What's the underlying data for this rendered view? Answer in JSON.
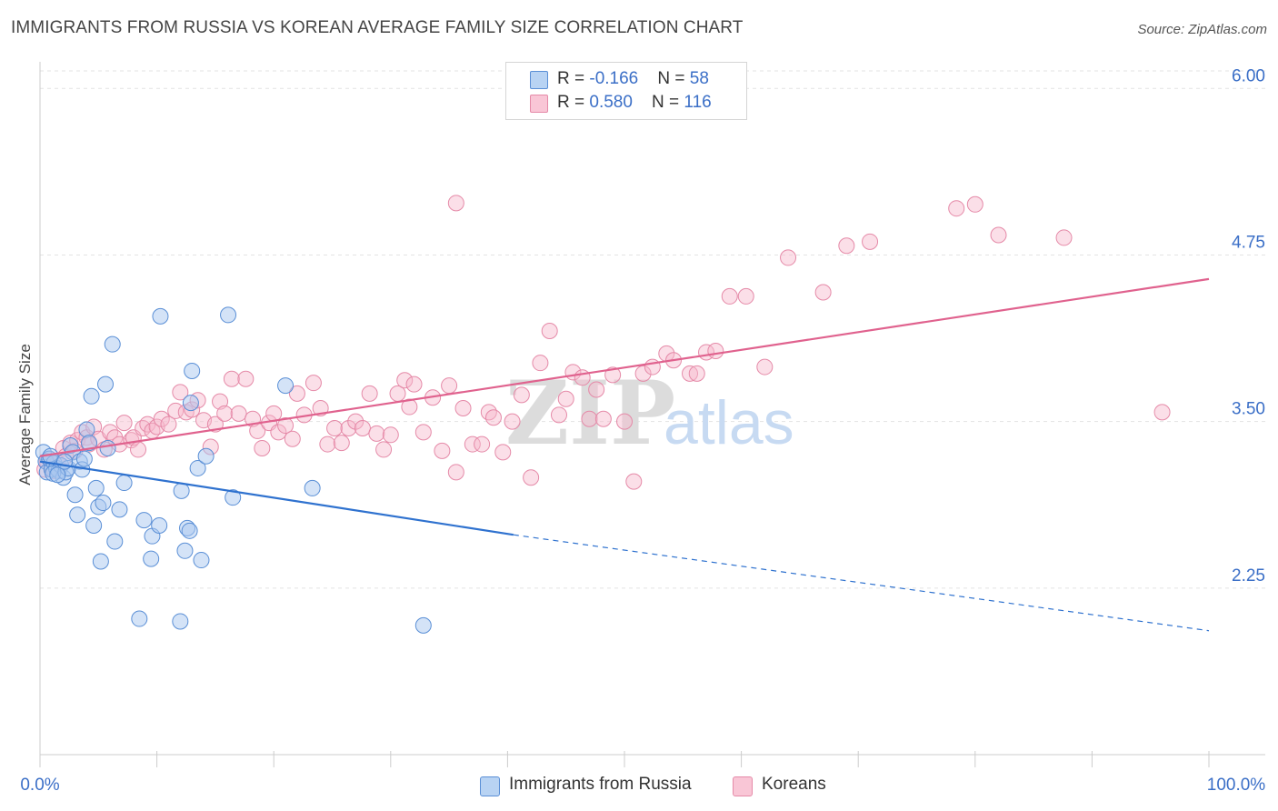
{
  "title": "IMMIGRANTS FROM RUSSIA VS KOREAN AVERAGE FAMILY SIZE CORRELATION CHART",
  "source": "Source: ZipAtlas.com",
  "watermark": {
    "zip": "ZIP",
    "atlas": "atlas"
  },
  "legend": {
    "rows": [
      {
        "r_label": "R = ",
        "r_value": "-0.166",
        "n_label": "N = ",
        "n_value": "58"
      },
      {
        "r_label": "R = ",
        "r_value": "0.580",
        "n_label": "N = ",
        "n_value": "116"
      }
    ]
  },
  "colors": {
    "russia_fill": "#a9c8f0",
    "russia_stroke": "#5a8fd6",
    "russia_line": "#2f72cf",
    "korean_fill": "#f7b8cc",
    "korean_stroke": "#e58aa8",
    "korean_line": "#e0628e",
    "axis_text": "#3b6fc7",
    "grid": "#e3e3e3"
  },
  "chart_data": {
    "type": "scatter",
    "xlabel": "",
    "ylabel": "Average Family Size",
    "x_tick_labels": [
      "0.0%",
      "100.0%"
    ],
    "y_ticks": [
      2.25,
      3.5,
      4.75,
      6.0
    ],
    "y_tick_labels": [
      "2.25",
      "3.50",
      "4.75",
      "6.00"
    ],
    "xlim": [
      0,
      100
    ],
    "ylim": [
      1.0,
      6.2
    ],
    "grid": true,
    "legend_position": "top-center",
    "series": [
      {
        "name": "Immigrants from Russia",
        "r": -0.166,
        "n": 58,
        "trend": {
          "x0": 0,
          "y0": 3.2,
          "x1": 40.5,
          "y1": 2.65,
          "dash_x1": 100,
          "dash_y1": 1.93
        },
        "points": [
          [
            0.3,
            3.27
          ],
          [
            0.5,
            3.2
          ],
          [
            0.6,
            3.12
          ],
          [
            0.8,
            3.22
          ],
          [
            1.0,
            3.14
          ],
          [
            1.2,
            3.19
          ],
          [
            1.4,
            3.15
          ],
          [
            1.6,
            3.13
          ],
          [
            1.8,
            3.17
          ],
          [
            2.0,
            3.08
          ],
          [
            1.1,
            3.11
          ],
          [
            0.9,
            3.24
          ],
          [
            2.2,
            3.12
          ],
          [
            2.4,
            3.15
          ],
          [
            2.6,
            3.32
          ],
          [
            2.8,
            3.27
          ],
          [
            3.0,
            2.95
          ],
          [
            3.2,
            2.8
          ],
          [
            3.4,
            3.2
          ],
          [
            3.6,
            3.14
          ],
          [
            3.8,
            3.22
          ],
          [
            4.0,
            3.44
          ],
          [
            4.2,
            3.34
          ],
          [
            4.4,
            3.69
          ],
          [
            4.6,
            2.72
          ],
          [
            4.8,
            3.0
          ],
          [
            5.0,
            2.86
          ],
          [
            5.2,
            2.45
          ],
          [
            5.4,
            2.89
          ],
          [
            5.6,
            3.78
          ],
          [
            5.8,
            3.3
          ],
          [
            6.2,
            4.08
          ],
          [
            6.4,
            2.6
          ],
          [
            6.8,
            2.84
          ],
          [
            7.2,
            3.04
          ],
          [
            8.5,
            2.02
          ],
          [
            8.9,
            2.76
          ],
          [
            9.5,
            2.47
          ],
          [
            9.6,
            2.64
          ],
          [
            10.2,
            2.72
          ],
          [
            10.3,
            4.29
          ],
          [
            12.0,
            2.0
          ],
          [
            12.1,
            2.98
          ],
          [
            12.4,
            2.53
          ],
          [
            12.6,
            2.7
          ],
          [
            12.8,
            2.68
          ],
          [
            12.9,
            3.64
          ],
          [
            13.0,
            3.88
          ],
          [
            13.8,
            2.46
          ],
          [
            13.5,
            3.15
          ],
          [
            14.2,
            3.24
          ],
          [
            16.1,
            4.3
          ],
          [
            16.5,
            2.93
          ],
          [
            21.0,
            3.77
          ],
          [
            23.3,
            3.0
          ],
          [
            32.8,
            1.97
          ],
          [
            1.5,
            3.1
          ],
          [
            2.1,
            3.2
          ]
        ]
      },
      {
        "name": "Koreans",
        "r": 0.58,
        "n": 116,
        "trend": {
          "x0": 0,
          "y0": 3.24,
          "x1": 100,
          "y1": 4.57
        },
        "points": [
          [
            0.4,
            3.14
          ],
          [
            0.6,
            3.2
          ],
          [
            0.8,
            3.22
          ],
          [
            1.0,
            3.16
          ],
          [
            1.2,
            3.13
          ],
          [
            1.5,
            3.19
          ],
          [
            2.0,
            3.3
          ],
          [
            2.2,
            3.24
          ],
          [
            2.6,
            3.34
          ],
          [
            3.0,
            3.28
          ],
          [
            3.2,
            3.36
          ],
          [
            3.6,
            3.42
          ],
          [
            4.0,
            3.38
          ],
          [
            4.2,
            3.33
          ],
          [
            4.6,
            3.46
          ],
          [
            5.0,
            3.37
          ],
          [
            5.5,
            3.29
          ],
          [
            6.0,
            3.42
          ],
          [
            6.4,
            3.38
          ],
          [
            6.8,
            3.33
          ],
          [
            7.2,
            3.49
          ],
          [
            7.8,
            3.36
          ],
          [
            8.0,
            3.38
          ],
          [
            8.4,
            3.29
          ],
          [
            8.8,
            3.45
          ],
          [
            9.2,
            3.48
          ],
          [
            9.6,
            3.43
          ],
          [
            10.0,
            3.46
          ],
          [
            10.4,
            3.52
          ],
          [
            11.0,
            3.48
          ],
          [
            11.6,
            3.58
          ],
          [
            12.0,
            3.72
          ],
          [
            12.5,
            3.57
          ],
          [
            13.0,
            3.59
          ],
          [
            13.5,
            3.66
          ],
          [
            14.0,
            3.51
          ],
          [
            14.6,
            3.31
          ],
          [
            15.0,
            3.48
          ],
          [
            15.4,
            3.65
          ],
          [
            15.8,
            3.56
          ],
          [
            16.4,
            3.82
          ],
          [
            17.0,
            3.56
          ],
          [
            17.6,
            3.82
          ],
          [
            18.2,
            3.52
          ],
          [
            18.6,
            3.43
          ],
          [
            19.0,
            3.3
          ],
          [
            19.6,
            3.49
          ],
          [
            20.0,
            3.56
          ],
          [
            20.4,
            3.42
          ],
          [
            21.0,
            3.47
          ],
          [
            21.6,
            3.37
          ],
          [
            22.0,
            3.71
          ],
          [
            22.6,
            3.55
          ],
          [
            23.4,
            3.79
          ],
          [
            24.0,
            3.6
          ],
          [
            24.6,
            3.33
          ],
          [
            25.2,
            3.45
          ],
          [
            25.8,
            3.34
          ],
          [
            26.4,
            3.45
          ],
          [
            27.0,
            3.5
          ],
          [
            27.6,
            3.45
          ],
          [
            28.2,
            3.71
          ],
          [
            28.8,
            3.41
          ],
          [
            29.4,
            3.29
          ],
          [
            30.0,
            3.4
          ],
          [
            30.6,
            3.71
          ],
          [
            31.2,
            3.81
          ],
          [
            31.6,
            3.61
          ],
          [
            32.0,
            3.78
          ],
          [
            32.8,
            3.42
          ],
          [
            33.6,
            3.68
          ],
          [
            34.4,
            3.28
          ],
          [
            35.0,
            3.77
          ],
          [
            35.6,
            3.12
          ],
          [
            36.2,
            3.6
          ],
          [
            37.0,
            3.33
          ],
          [
            37.8,
            3.33
          ],
          [
            38.4,
            3.57
          ],
          [
            38.8,
            3.53
          ],
          [
            39.6,
            3.27
          ],
          [
            40.4,
            3.5
          ],
          [
            41.2,
            3.7
          ],
          [
            42.0,
            3.08
          ],
          [
            42.8,
            3.94
          ],
          [
            43.6,
            4.18
          ],
          [
            44.4,
            3.55
          ],
          [
            45.0,
            3.67
          ],
          [
            45.6,
            3.87
          ],
          [
            46.4,
            3.83
          ],
          [
            47.0,
            3.52
          ],
          [
            47.6,
            3.74
          ],
          [
            48.2,
            3.52
          ],
          [
            49.0,
            3.85
          ],
          [
            50.0,
            3.5
          ],
          [
            50.8,
            3.05
          ],
          [
            51.6,
            3.86
          ],
          [
            52.4,
            3.91
          ],
          [
            53.6,
            4.01
          ],
          [
            54.2,
            3.96
          ],
          [
            55.6,
            3.86
          ],
          [
            56.2,
            3.86
          ],
          [
            57.0,
            4.02
          ],
          [
            57.8,
            4.03
          ],
          [
            59.0,
            4.44
          ],
          [
            60.4,
            4.44
          ],
          [
            62.0,
            3.91
          ],
          [
            64.0,
            4.73
          ],
          [
            67.0,
            4.47
          ],
          [
            69.0,
            4.82
          ],
          [
            71.0,
            4.85
          ],
          [
            78.4,
            5.1
          ],
          [
            80.0,
            5.13
          ],
          [
            82.0,
            4.9
          ],
          [
            87.6,
            4.88
          ],
          [
            96.0,
            3.57
          ],
          [
            35.6,
            5.14
          ]
        ]
      }
    ]
  },
  "bottom_legend": [
    {
      "label": "Immigrants from Russia"
    },
    {
      "label": "Koreans"
    }
  ]
}
